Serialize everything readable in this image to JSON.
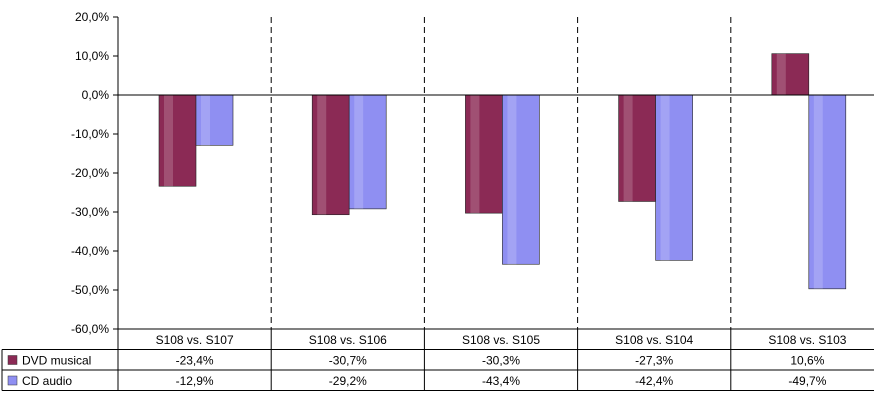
{
  "chart_data": {
    "type": "bar",
    "title": "",
    "xlabel": "",
    "ylabel": "",
    "ylim": [
      -60,
      20
    ],
    "y_ticks": [
      "20,0%",
      "10,0%",
      "0,0%",
      "-10,0%",
      "-20,0%",
      "-30,0%",
      "-40,0%",
      "-50,0%",
      "-60,0%"
    ],
    "categories": [
      "S108 vs. S107",
      "S108 vs. S106",
      "S108 vs. S105",
      "S108 vs. S104",
      "S108 vs. S103"
    ],
    "series": [
      {
        "name": "DVD musical",
        "color": "#8b2a55",
        "values": [
          -23.4,
          -30.7,
          -30.3,
          -27.3,
          10.6
        ],
        "labels": [
          "-23,4%",
          "-30,7%",
          "-30,3%",
          "-27,3%",
          "10,6%"
        ]
      },
      {
        "name": "CD audio",
        "color": "#8f8ff2",
        "values": [
          -12.9,
          -29.2,
          -43.4,
          -42.4,
          -49.7
        ],
        "labels": [
          "-12,9%",
          "-29,2%",
          "-43,4%",
          "-42,4%",
          "-49,7%"
        ]
      }
    ],
    "grid": false,
    "legend": "data-table-left"
  }
}
